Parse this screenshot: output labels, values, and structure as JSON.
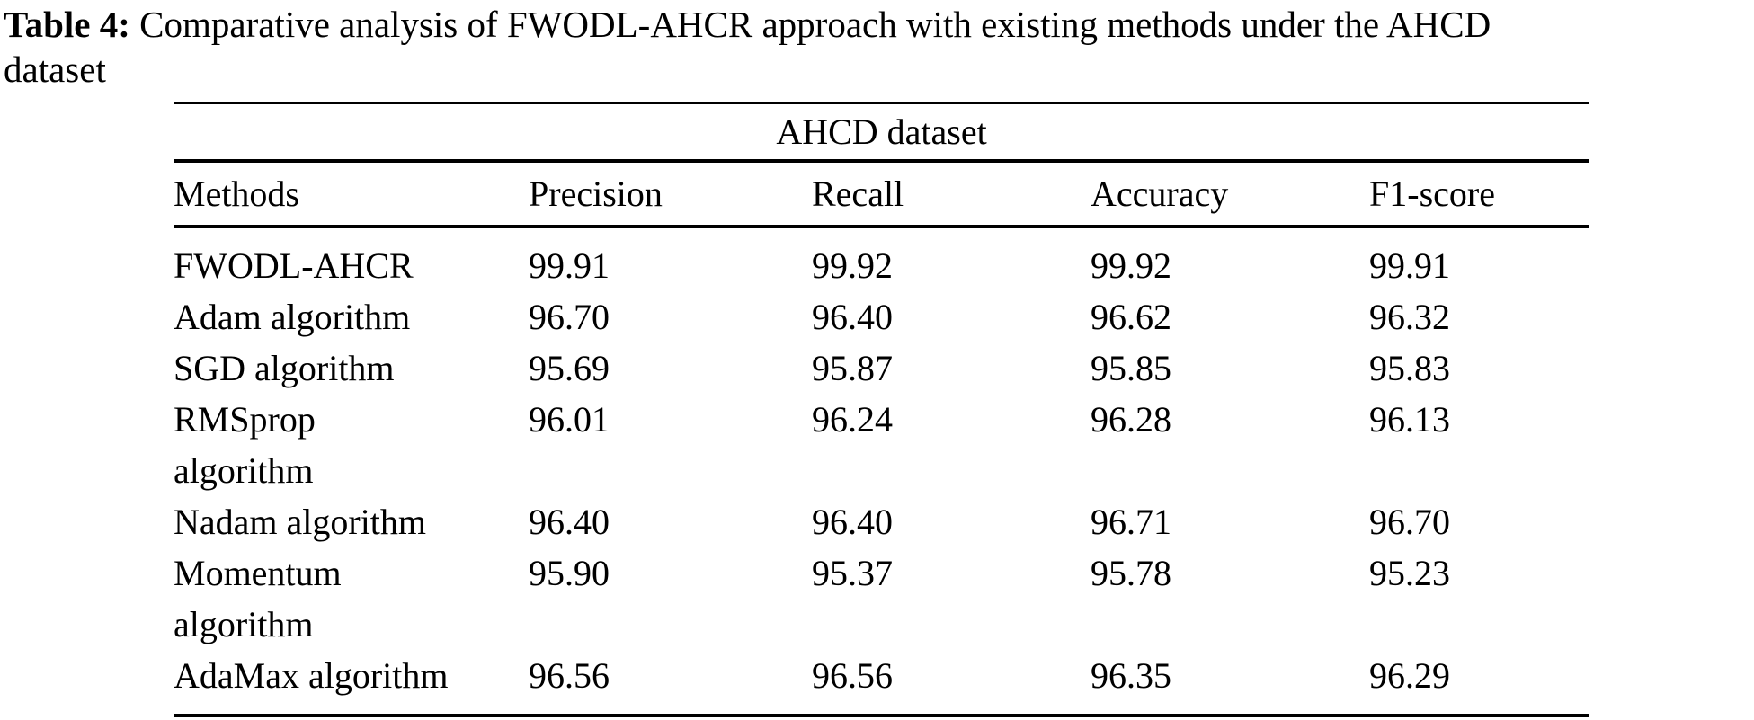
{
  "caption": {
    "label": "Table 4:",
    "line1": " Comparative analysis of FWODL-AHCR approach with existing methods under the AHCD",
    "line2": "dataset"
  },
  "table": {
    "span_header": "AHCD dataset",
    "columns": [
      "Methods",
      "Precision",
      "Recall",
      "Accuracy",
      "F1-score"
    ],
    "rows": [
      {
        "method": "FWODL-AHCR",
        "precision": "99.91",
        "recall": "99.92",
        "accuracy": "99.92",
        "f1": "99.91"
      },
      {
        "method": "Adam algorithm",
        "precision": "96.70",
        "recall": "96.40",
        "accuracy": "96.62",
        "f1": "96.32"
      },
      {
        "method": "SGD algorithm",
        "precision": "95.69",
        "recall": "95.87",
        "accuracy": "95.85",
        "f1": "95.83"
      },
      {
        "method": "RMSprop\nalgorithm",
        "precision": "96.01",
        "recall": "96.24",
        "accuracy": "96.28",
        "f1": "96.13"
      },
      {
        "method": "Nadam algorithm",
        "precision": "96.40",
        "recall": "96.40",
        "accuracy": "96.71",
        "f1": "96.70"
      },
      {
        "method": "Momentum\nalgorithm",
        "precision": "95.90",
        "recall": "95.37",
        "accuracy": "95.78",
        "f1": "95.23"
      },
      {
        "method": "AdaMax algorithm",
        "precision": "96.56",
        "recall": "96.56",
        "accuracy": "96.35",
        "f1": "96.29"
      }
    ]
  },
  "colors": {
    "text": "#000000",
    "background": "#ffffff",
    "rule": "#000000"
  }
}
